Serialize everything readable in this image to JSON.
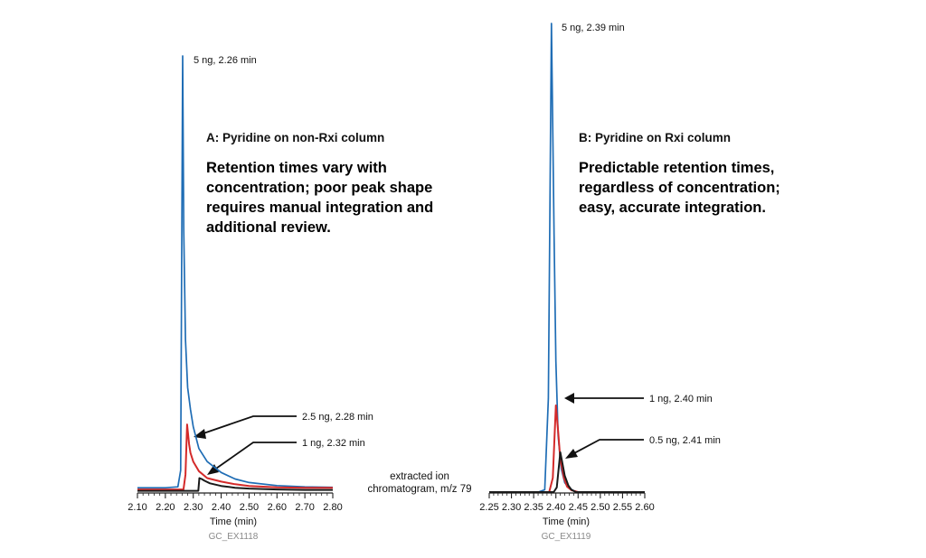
{
  "chart_data": [
    {
      "type": "line",
      "panel": "A",
      "title": "A: Pyridine on non-Rxi column",
      "blurb": [
        "Retention times vary with",
        "concentration; poor peak shape",
        "requires manual integration and",
        "additional review."
      ],
      "xlabel": "Time (min)",
      "xlim": [
        2.1,
        2.8
      ],
      "xticks": [
        "2.10",
        "2.20",
        "2.30",
        "2.40",
        "2.50",
        "2.60",
        "2.70",
        "2.80"
      ],
      "code": "GC_EX1118",
      "series": [
        {
          "name": "5 ng",
          "color": "#1f6db5",
          "x": [
            2.1,
            2.2,
            2.245,
            2.255,
            2.262,
            2.266,
            2.272,
            2.28,
            2.29,
            2.3,
            2.32,
            2.35,
            2.4,
            2.45,
            2.5,
            2.6,
            2.7,
            2.8
          ],
          "y": [
            0.01,
            0.01,
            0.012,
            0.05,
            1.0,
            0.6,
            0.35,
            0.24,
            0.19,
            0.15,
            0.1,
            0.07,
            0.045,
            0.03,
            0.022,
            0.015,
            0.012,
            0.011
          ]
        },
        {
          "name": "2.5 ng",
          "color": "#d42a2a",
          "x": [
            2.1,
            2.2,
            2.265,
            2.272,
            2.278,
            2.285,
            2.29,
            2.3,
            2.32,
            2.35,
            2.4,
            2.45,
            2.5,
            2.6,
            2.7,
            2.8
          ],
          "y": [
            0.006,
            0.006,
            0.006,
            0.04,
            0.155,
            0.11,
            0.09,
            0.07,
            0.048,
            0.032,
            0.024,
            0.018,
            0.014,
            0.011,
            0.01,
            0.01
          ]
        },
        {
          "name": "1 ng",
          "color": "#1a1a1a",
          "x": [
            2.1,
            2.25,
            2.318,
            2.322,
            2.33,
            2.34,
            2.36,
            2.4,
            2.45,
            2.5,
            2.6,
            2.7,
            2.8
          ],
          "y": [
            0.003,
            0.003,
            0.003,
            0.032,
            0.03,
            0.026,
            0.02,
            0.014,
            0.01,
            0.008,
            0.006,
            0.005,
            0.005
          ]
        }
      ],
      "annotations": [
        {
          "text": "5 ng, 2.26 min"
        },
        {
          "text": "2.5 ng, 2.28 min"
        },
        {
          "text": "1 ng, 2.32 min"
        }
      ]
    },
    {
      "type": "line",
      "panel": "B",
      "title": "B: Pyridine on Rxi column",
      "blurb": [
        "Predictable retention times,",
        "regardless of concentration;",
        "easy, accurate integration."
      ],
      "xlabel": "Time (min)",
      "xlim": [
        2.25,
        2.6
      ],
      "xticks": [
        "2.25",
        "2.30",
        "2.35",
        "2.40",
        "2.45",
        "2.50",
        "2.55",
        "2.60"
      ],
      "code": "GC_EX1119",
      "series": [
        {
          "name": "5 ng",
          "color": "#1f6db5",
          "x": [
            2.25,
            2.36,
            2.375,
            2.383,
            2.39,
            2.396,
            2.4,
            2.405,
            2.412,
            2.42,
            2.43,
            2.44,
            2.45,
            2.6
          ],
          "y": [
            0.0,
            0.0,
            0.005,
            0.2,
            1.0,
            0.55,
            0.28,
            0.12,
            0.05,
            0.02,
            0.008,
            0.003,
            0.0,
            0.0
          ]
        },
        {
          "name": "1 ng",
          "color": "#d42a2a",
          "x": [
            2.25,
            2.385,
            2.393,
            2.4,
            2.405,
            2.41,
            2.418,
            2.425,
            2.435,
            2.45,
            2.6
          ],
          "y": [
            0.0,
            0.0,
            0.03,
            0.185,
            0.13,
            0.07,
            0.03,
            0.012,
            0.004,
            0.0,
            0.0
          ]
        },
        {
          "name": "0.5 ng",
          "color": "#1a1a1a",
          "x": [
            2.25,
            2.395,
            2.402,
            2.41,
            2.415,
            2.42,
            2.428,
            2.435,
            2.445,
            2.6
          ],
          "y": [
            0.0,
            0.0,
            0.01,
            0.085,
            0.06,
            0.035,
            0.014,
            0.005,
            0.0,
            0.0
          ]
        }
      ],
      "annotations": [
        {
          "text": "5 ng, 2.39 min"
        },
        {
          "text": "1 ng, 2.40 min"
        },
        {
          "text": "0.5 ng, 2.41 min"
        }
      ]
    }
  ],
  "shared_note": [
    "extracted ion",
    "chromatogram, m/z 79"
  ],
  "colors": {
    "blurb": "#1f6db5",
    "axis": "#222222",
    "code": "#8a8a8a"
  }
}
